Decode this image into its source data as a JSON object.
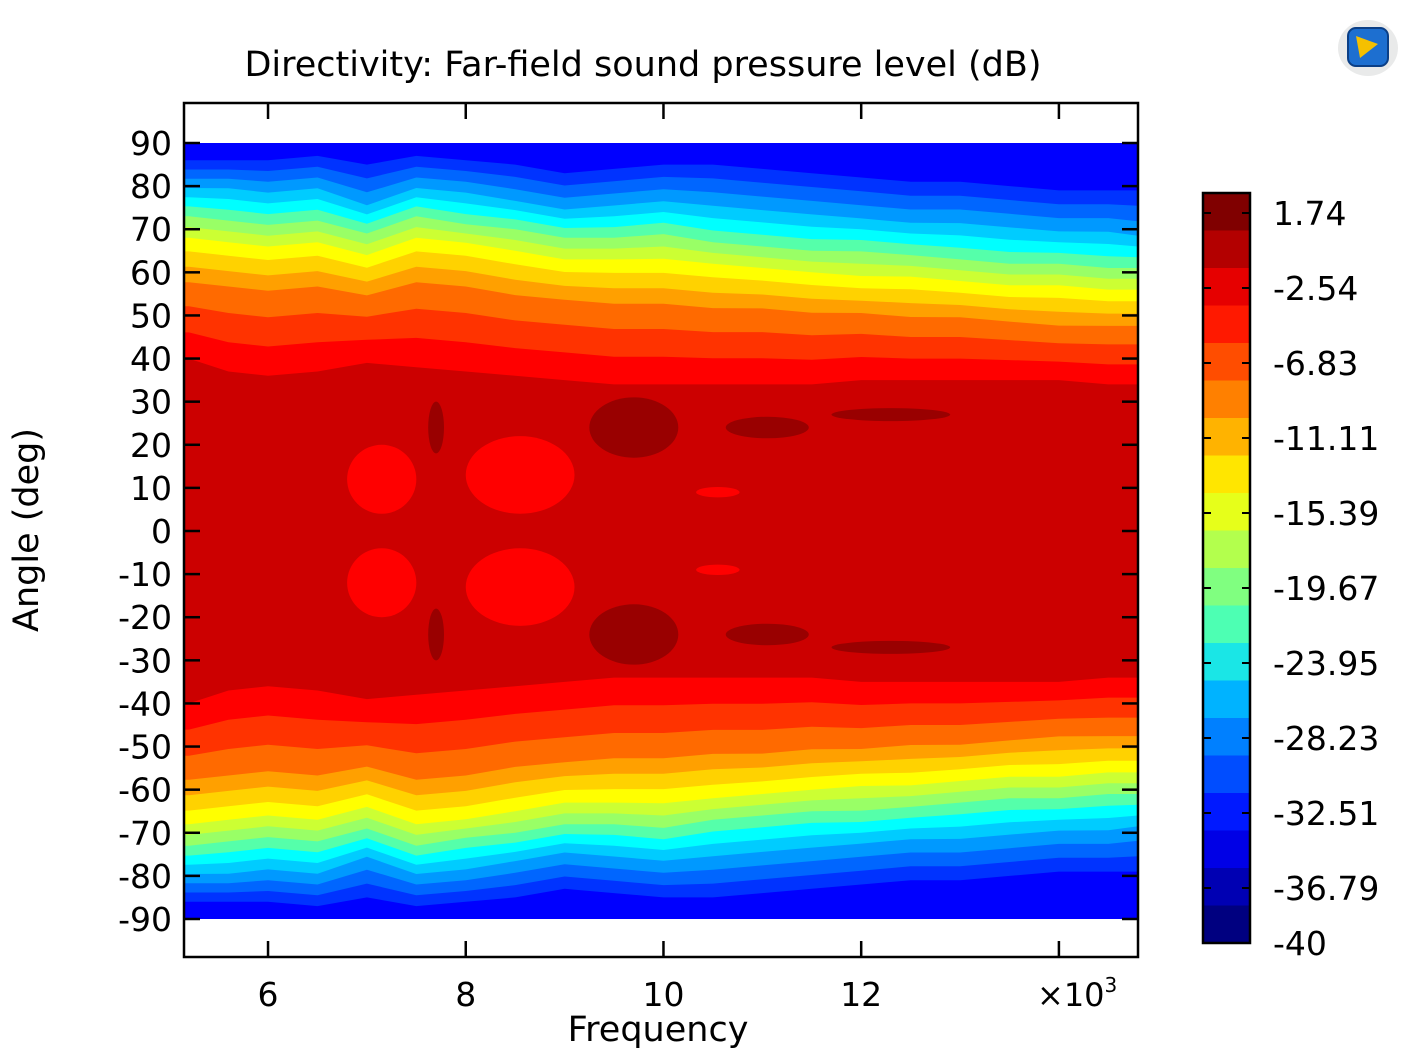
{
  "chart_data": {
    "type": "heatmap",
    "title": "Directivity: Far-field sound pressure level (dB)",
    "xlabel": "Frequency",
    "ylabel": "Angle (deg)",
    "x_multiplier_label": "×10",
    "x_multiplier_exp": "3",
    "xlim": [
      5.15,
      14.8
    ],
    "ylim": [
      -90,
      90
    ],
    "x_ticks": [
      {
        "value": 6,
        "label": "6"
      },
      {
        "value": 8,
        "label": "8"
      },
      {
        "value": 10,
        "label": "10"
      },
      {
        "value": 12,
        "label": "12"
      },
      {
        "value": 14,
        "label": ""
      }
    ],
    "y_ticks": [
      {
        "value": 90,
        "label": "90"
      },
      {
        "value": 80,
        "label": "80"
      },
      {
        "value": 70,
        "label": "70"
      },
      {
        "value": 60,
        "label": "60"
      },
      {
        "value": 50,
        "label": "50"
      },
      {
        "value": 40,
        "label": "40"
      },
      {
        "value": 30,
        "label": "30"
      },
      {
        "value": 20,
        "label": "20"
      },
      {
        "value": 10,
        "label": "10"
      },
      {
        "value": 0,
        "label": "0"
      },
      {
        "value": -10,
        "label": "-10"
      },
      {
        "value": -20,
        "label": "-20"
      },
      {
        "value": -30,
        "label": "-30"
      },
      {
        "value": -40,
        "label": "-40"
      },
      {
        "value": -50,
        "label": "-50"
      },
      {
        "value": -60,
        "label": "-60"
      },
      {
        "value": -70,
        "label": "-70"
      },
      {
        "value": -80,
        "label": "-80"
      },
      {
        "value": -90,
        "label": "-90"
      }
    ],
    "colorbar": {
      "labels": [
        "1.74",
        "-2.54",
        "-6.83",
        "-11.11",
        "-15.39",
        "-19.67",
        "-23.95",
        "-28.23",
        "-32.51",
        "-36.79",
        "-40"
      ],
      "colors": [
        "#800000",
        "#b30000",
        "#e60000",
        "#ff1900",
        "#ff4d00",
        "#ff8000",
        "#ffb300",
        "#ffe600",
        "#e6ff1a",
        "#b3ff4d",
        "#80ff80",
        "#4dffb3",
        "#1ae6e6",
        "#00b3ff",
        "#0080ff",
        "#004dff",
        "#0019ff",
        "#0000e6",
        "#0000b3",
        "#000080"
      ]
    },
    "levels": {
      "x": [
        5.2,
        5.6,
        6.0,
        6.5,
        7.0,
        7.5,
        8.0,
        8.5,
        9.0,
        9.5,
        10.0,
        10.5,
        11.0,
        11.5,
        12.0,
        12.5,
        13.0,
        13.5,
        14.0,
        14.5,
        14.8
      ],
      "angles": [
        40,
        58,
        67,
        73,
        79,
        85
      ],
      "angle_rows": [
        [
          40,
          37,
          36,
          37,
          39,
          38,
          37,
          36,
          35,
          34,
          34,
          34,
          34,
          34,
          35,
          35,
          35,
          35,
          35,
          34,
          34
        ],
        [
          57,
          56,
          55,
          56,
          54,
          57,
          56,
          54,
          53,
          52,
          52,
          51,
          51,
          50,
          50,
          49,
          49,
          48,
          47,
          47,
          47
        ],
        [
          67,
          66,
          65,
          66,
          63,
          67,
          66,
          64,
          62,
          62,
          62,
          61,
          60,
          59,
          58,
          58,
          57,
          56,
          56,
          55,
          55
        ],
        [
          74,
          73,
          72,
          73,
          70,
          74,
          72,
          71,
          69,
          69,
          70,
          68,
          67,
          66,
          66,
          65,
          64,
          63,
          63,
          62,
          62
        ],
        [
          80,
          80,
          79,
          80,
          76,
          80,
          79,
          77,
          75,
          76,
          77,
          76,
          75,
          74,
          73,
          72,
          72,
          71,
          70,
          70,
          69
        ],
        [
          86,
          86,
          86,
          87,
          85,
          87,
          86,
          85,
          83,
          84,
          85,
          85,
          84,
          83,
          82,
          81,
          81,
          80,
          79,
          79,
          79
        ]
      ],
      "band_colors_from_center": [
        "#cc0000",
        "#ff0000",
        "#ff3300",
        "#ff6a00",
        "#ffa000",
        "#ffd200",
        "#ffff00",
        "#ccff33",
        "#99ff66",
        "#55ffaa",
        "#00ffff",
        "#00ccff",
        "#0099ff",
        "#0066ff",
        "#0033ff",
        "#0000ff"
      ],
      "peak_color": "#990000",
      "peaks": [
        {
          "cx": 9.7,
          "cy": 24,
          "rx": 0.45,
          "ry": 7
        },
        {
          "cx": 11.05,
          "cy": 24,
          "rx": 0.42,
          "ry": 2.5
        },
        {
          "cx": 12.3,
          "cy": 27,
          "rx": 0.6,
          "ry": 1.5
        },
        {
          "cx": 7.7,
          "cy": 24,
          "rx": 0.08,
          "ry": 6
        }
      ],
      "dips": [
        {
          "cx": 7.15,
          "cy": 12,
          "rx": 0.35,
          "ry": 8
        },
        {
          "cx": 8.55,
          "cy": 13,
          "rx": 0.55,
          "ry": 9
        },
        {
          "cx": 10.55,
          "cy": 9,
          "rx": 0.22,
          "ry": 1.2
        }
      ]
    }
  }
}
